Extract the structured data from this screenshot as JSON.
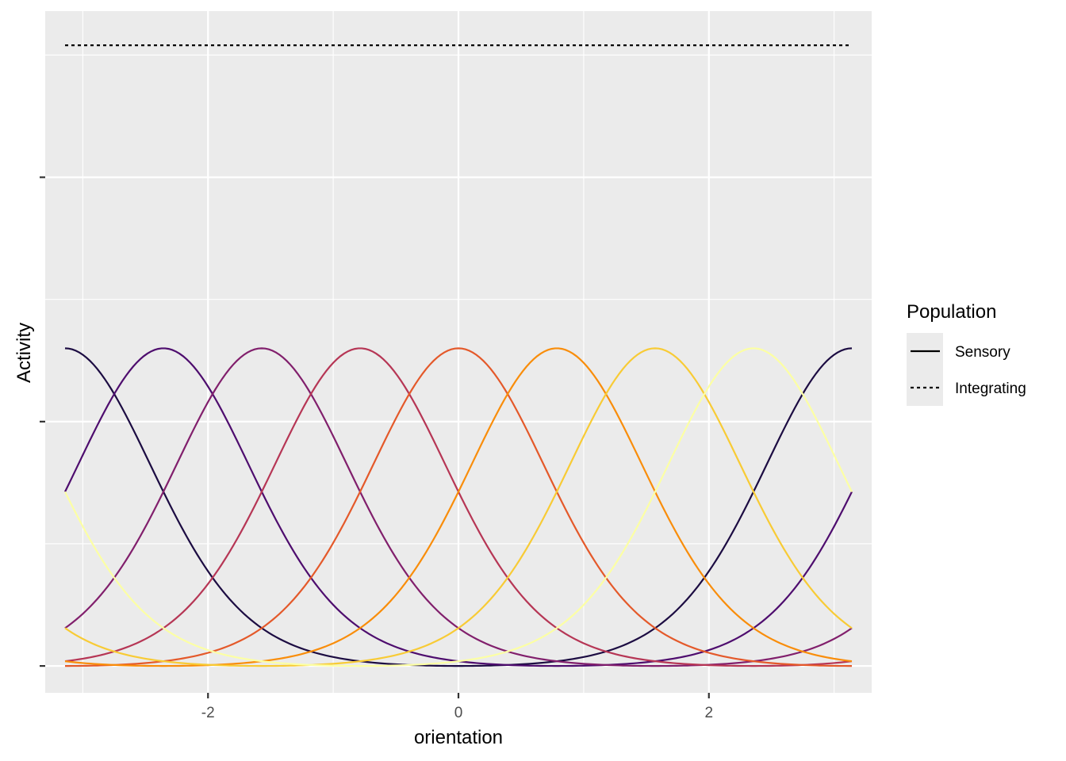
{
  "chart_data": {
    "type": "line",
    "title": "",
    "xlabel": "orientation",
    "ylabel": "Activity",
    "xlim": [
      -3.3,
      3.3
    ],
    "ylim": [
      -0.055,
      1.34
    ],
    "x_ticks": [
      -2,
      0,
      2
    ],
    "x_tick_labels": [
      "-2",
      "0",
      "2"
    ],
    "y_ticks": [
      0,
      0.5,
      1.0
    ],
    "y_tick_labels": [
      "",
      "",
      ""
    ],
    "grid": true,
    "x_domain": [
      -3.14159,
      3.14159
    ],
    "tuning_curve": {
      "kind": "von Mises",
      "peak": 0.65,
      "kappa": 2.0,
      "centers_pi_fraction": [
        -1.0,
        -0.75,
        -0.5,
        -0.25,
        0.0,
        0.25,
        0.5,
        0.75
      ]
    },
    "series": [
      {
        "population": "Sensory",
        "center": -3.14159,
        "color": "#1c0c42",
        "dash": "solid"
      },
      {
        "population": "Sensory",
        "center": -2.35619,
        "color": "#4e0d6e",
        "dash": "solid"
      },
      {
        "population": "Sensory",
        "center": -1.5708,
        "color": "#811f6c",
        "dash": "solid"
      },
      {
        "population": "Sensory",
        "center": -0.7854,
        "color": "#b63655",
        "dash": "solid"
      },
      {
        "population": "Sensory",
        "center": 0.0,
        "color": "#e4592a",
        "dash": "solid"
      },
      {
        "population": "Sensory",
        "center": 0.7854,
        "color": "#f98d0a",
        "dash": "solid"
      },
      {
        "population": "Sensory",
        "center": 1.5708,
        "color": "#f8cb35",
        "dash": "solid"
      },
      {
        "population": "Sensory",
        "center": 2.35619,
        "color": "#fcffa4",
        "dash": "solid"
      },
      {
        "population": "Integrating",
        "constant": 1.27,
        "color": "#000000",
        "dash": "dotted"
      }
    ],
    "legend": {
      "title": "Population",
      "position": "right",
      "entries": [
        {
          "label": "Sensory",
          "dash": "solid"
        },
        {
          "label": "Integrating",
          "dash": "dotted"
        }
      ]
    }
  }
}
